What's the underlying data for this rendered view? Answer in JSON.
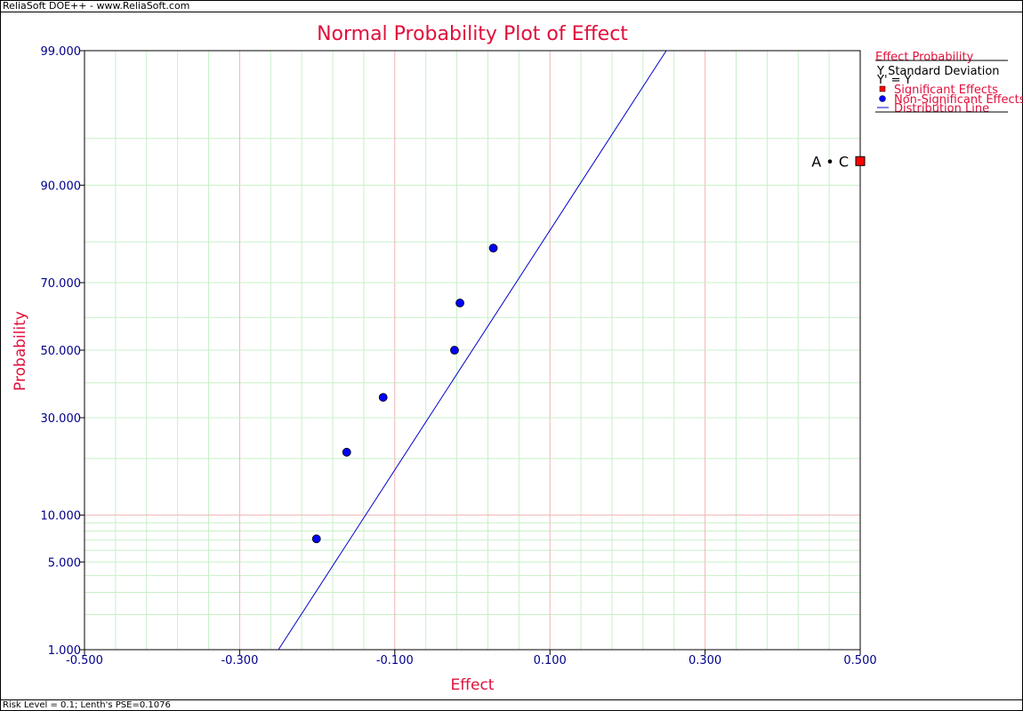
{
  "header": {
    "app_text": "ReliaSoft DOE++ - www.ReliaSoft.com"
  },
  "footer": {
    "status_text": "Risk Level = 0.1; Lenth's PSE=0.1076"
  },
  "legend": {
    "title": "Effect Probability",
    "y_label": "Y Standard Deviation",
    "transform": "Y' = Y",
    "items": [
      {
        "label": "Significant Effects",
        "marker": "red-square",
        "color": "#ff0000"
      },
      {
        "label": "Non-Significant Effects",
        "marker": "blue-circle",
        "color": "#0000ff"
      },
      {
        "label": "Distribution Line",
        "marker": "blue-line",
        "color": "#0000cc"
      }
    ]
  },
  "chart_data": {
    "type": "scatter",
    "title": "Normal Probability Plot of Effect",
    "xlabel": "Effect",
    "ylabel": "Probability",
    "xlim": [
      -0.5,
      0.5
    ],
    "ylim": [
      1,
      99
    ],
    "y_scale": "normal-probability",
    "grid": true,
    "legend_position": "right",
    "x_ticks": [
      -0.5,
      -0.3,
      -0.1,
      0.1,
      0.3,
      0.5
    ],
    "x_tick_labels": [
      "-0.500",
      "-0.300",
      "-0.100",
      "0.100",
      "0.300",
      "0.500"
    ],
    "y_ticks": [
      1,
      5,
      10,
      30,
      50,
      70,
      90,
      99
    ],
    "y_tick_labels": [
      "1.000",
      "5.000",
      "10.000",
      "30.000",
      "50.000",
      "70.000",
      "90.000",
      "99.000"
    ],
    "x_minor_grid": [
      -0.46,
      -0.42,
      -0.38,
      -0.34,
      -0.26,
      -0.22,
      -0.18,
      -0.14,
      -0.06,
      -0.02,
      0.02,
      0.06,
      0.14,
      0.18,
      0.22,
      0.26,
      0.34,
      0.38,
      0.42,
      0.46
    ],
    "y_minor_grid": [
      2,
      3,
      4,
      6,
      7,
      8,
      9,
      20,
      40,
      60,
      80,
      95
    ],
    "series": [
      {
        "name": "Non-Significant Effects",
        "color": "#0000ff",
        "points": [
          {
            "x": -0.201,
            "y": 7.14
          },
          {
            "x": -0.162,
            "y": 21.4
          },
          {
            "x": -0.115,
            "y": 35.7
          },
          {
            "x": -0.023,
            "y": 50.0
          },
          {
            "x": -0.016,
            "y": 64.3
          },
          {
            "x": 0.027,
            "y": 78.6
          }
        ]
      },
      {
        "name": "Significant Effects",
        "color": "#ff0000",
        "points": [
          {
            "x": 0.5,
            "y": 92.9,
            "label": "A • C"
          }
        ]
      }
    ],
    "distribution_line": {
      "name": "Distribution Line",
      "color": "#0000cc",
      "x": [
        -0.25,
        0.25
      ],
      "y": [
        1,
        99
      ]
    }
  }
}
